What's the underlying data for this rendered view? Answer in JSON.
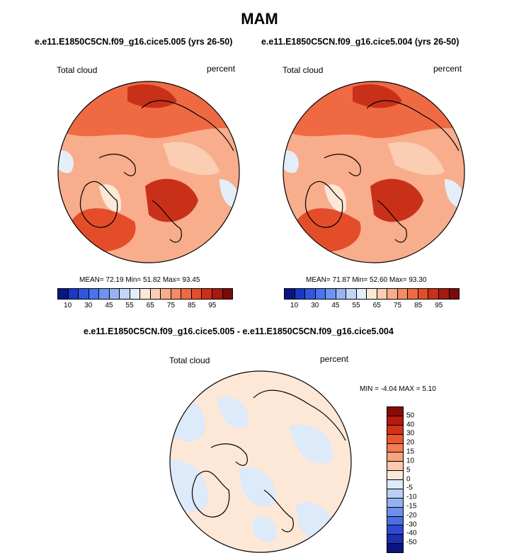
{
  "page": {
    "title": "MAM",
    "header_left": "e.e11.E1850C5CN.f09_g16.cice5.005 (yrs 26-50)",
    "header_right": "e.e11.E1850C5CN.f09_g16.cice5.004 (yrs 26-50)",
    "diff_header": "e.e11.E1850C5CN.f09_g16.cice5.005 - e.e11.E1850C5CN.f09_g16.cice5.004"
  },
  "maps": [
    {
      "variable": "Total cloud",
      "units": "percent",
      "stats": "MEAN=  72.19  Min=  51.82  Max=  93.45"
    },
    {
      "variable": "Total cloud",
      "units": "percent",
      "stats": "MEAN=  71.87  Min=  52.60  Max=  93.30"
    },
    {
      "variable": "Total cloud",
      "units": "percent",
      "stats": "MIN =  -4.04 MAX =   5.10"
    }
  ],
  "colorbar_abs": {
    "colors": [
      "#0a1680",
      "#1b37c4",
      "#2f57e0",
      "#4a74ee",
      "#6f93f2",
      "#98b3f4",
      "#c2d6f7",
      "#e4eefb",
      "#fde8d8",
      "#fbcdb3",
      "#f8ad8c",
      "#f48c66",
      "#ef6a43",
      "#e44d2a",
      "#c9301a",
      "#a71a10",
      "#7b0a08"
    ],
    "labels": [
      "10",
      "30",
      "45",
      "55",
      "65",
      "75",
      "85",
      "95"
    ]
  },
  "colorbar_diff": {
    "colors": [
      "#8b0a07",
      "#b41a0e",
      "#d43218",
      "#ee5630",
      "#f57b52",
      "#f8a27e",
      "#fbc9ad",
      "#fde8d8",
      "#dceaf9",
      "#b8cff5",
      "#93b0f1",
      "#6f8fec",
      "#4e6de4",
      "#2f4bd6",
      "#1c2eb2",
      "#0a1580"
    ],
    "labels": [
      "50",
      "40",
      "30",
      "20",
      "15",
      "10",
      "5",
      "0",
      "-5",
      "-10",
      "-15",
      "-20",
      "-30",
      "-40",
      "-50"
    ]
  }
}
